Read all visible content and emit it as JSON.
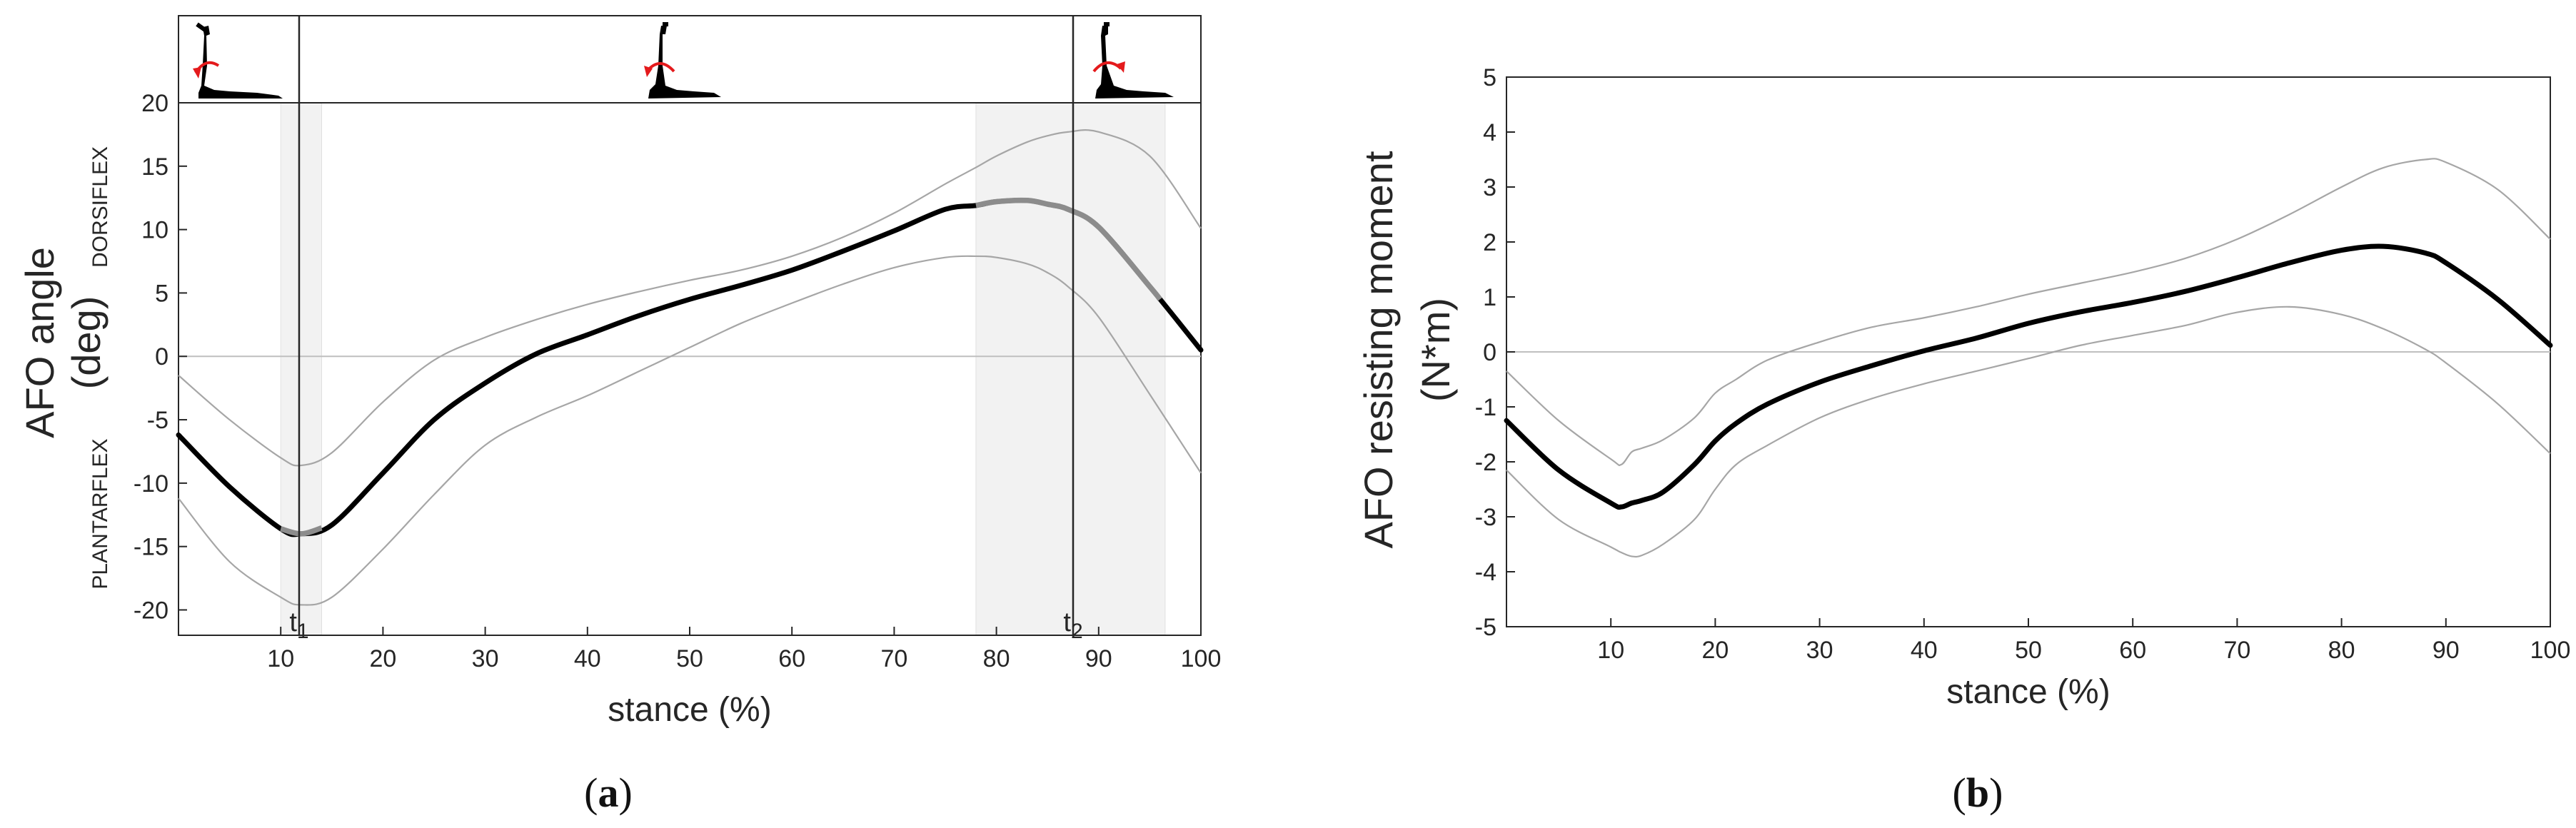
{
  "colors": {
    "mean": "#000000",
    "mean_highlight": "#8c8c8c",
    "sd": "#a6a6a6",
    "band": "#f2f2f2",
    "axis": "#262626",
    "zero": "#bfbfbf",
    "arrow": "#e41a1c"
  },
  "panels": {
    "a": {
      "caption_letter": "a",
      "caption_open": "(",
      "caption_close": ")"
    },
    "b": {
      "caption_letter": "b",
      "caption_open": "(",
      "caption_close": ")"
    }
  },
  "chart_data": [
    {
      "id": "a",
      "type": "line",
      "title": "",
      "xlabel": "stance (%)",
      "ylabel_line1": "AFO angle",
      "ylabel_line2": "(deg)",
      "side_label_top": "DORSIFLEX",
      "side_label_bottom": "PLANTARFLEX",
      "xlim": [
        0,
        100
      ],
      "ylim": [
        -22,
        20
      ],
      "xticks": [
        10,
        20,
        30,
        40,
        50,
        60,
        70,
        80,
        90,
        100
      ],
      "yticks": [
        -20,
        -15,
        -10,
        -5,
        0,
        5,
        10,
        15,
        20
      ],
      "x": [
        0,
        5,
        10,
        12,
        15,
        20,
        25,
        30,
        35,
        40,
        45,
        50,
        55,
        60,
        65,
        70,
        75,
        78,
        80,
        83,
        85,
        87,
        90,
        95,
        100
      ],
      "series": [
        {
          "name": "mean",
          "values": [
            -6.2,
            -10.3,
            -13.6,
            -14.0,
            -13.3,
            -9.2,
            -5.0,
            -2.1,
            0.2,
            1.7,
            3.2,
            4.5,
            5.6,
            6.8,
            8.3,
            9.9,
            11.6,
            11.9,
            12.2,
            12.3,
            12.0,
            11.6,
            10.2,
            5.5,
            0.5
          ]
        },
        {
          "name": "upper",
          "values": [
            -1.5,
            -5.0,
            -8.0,
            -8.6,
            -7.6,
            -3.6,
            -0.3,
            1.5,
            2.9,
            4.1,
            5.1,
            6.0,
            6.8,
            7.9,
            9.4,
            11.3,
            13.6,
            14.9,
            15.8,
            16.9,
            17.4,
            17.7,
            17.7,
            15.8,
            10.1
          ]
        },
        {
          "name": "lower",
          "values": [
            -11.2,
            -16.2,
            -19.0,
            -19.6,
            -19.0,
            -15.2,
            -10.9,
            -7.0,
            -4.8,
            -3.1,
            -1.2,
            0.7,
            2.6,
            4.2,
            5.7,
            7.0,
            7.8,
            7.9,
            7.8,
            7.3,
            6.6,
            5.5,
            3.1,
            -3.0,
            -9.2
          ]
        }
      ],
      "highlight_ranges": [
        [
          10,
          14
        ],
        [
          78,
          96
        ]
      ],
      "bands": [
        [
          10,
          14
        ],
        [
          78,
          96.5
        ]
      ],
      "vlines": [
        {
          "x": 11.8,
          "label": "t",
          "sub": "1"
        },
        {
          "x": 87.5,
          "label": "t",
          "sub": "2"
        }
      ],
      "phase_icons": [
        "ankle-plantarflexion-icon",
        "ankle-neutral-icon",
        "ankle-dorsiflexion-icon"
      ]
    },
    {
      "id": "b",
      "type": "line",
      "title": "",
      "xlabel": "stance (%)",
      "ylabel_line1": "AFO resisting moment",
      "ylabel_line2": "(N*m)",
      "xlim": [
        0,
        100
      ],
      "ylim": [
        -5,
        5
      ],
      "xticks": [
        10,
        20,
        30,
        40,
        50,
        60,
        70,
        80,
        90,
        100
      ],
      "yticks": [
        -5,
        -4,
        -3,
        -2,
        -1,
        0,
        1,
        2,
        3,
        4,
        5
      ],
      "x": [
        0,
        5,
        10,
        11,
        12,
        13,
        15,
        18,
        20,
        22,
        25,
        30,
        35,
        40,
        45,
        50,
        55,
        60,
        65,
        70,
        75,
        80,
        84,
        88,
        90,
        95,
        100
      ],
      "series": [
        {
          "name": "mean",
          "values": [
            -1.25,
            -2.15,
            -2.75,
            -2.82,
            -2.75,
            -2.7,
            -2.55,
            -2.05,
            -1.62,
            -1.3,
            -0.95,
            -0.55,
            -0.25,
            0.02,
            0.25,
            0.52,
            0.73,
            0.9,
            1.1,
            1.35,
            1.62,
            1.85,
            1.92,
            1.8,
            1.62,
            0.95,
            0.12
          ]
        },
        {
          "name": "upper",
          "values": [
            -0.35,
            -1.25,
            -1.95,
            -2.05,
            -1.82,
            -1.75,
            -1.6,
            -1.2,
            -0.75,
            -0.5,
            -0.15,
            0.18,
            0.45,
            0.62,
            0.82,
            1.05,
            1.25,
            1.45,
            1.7,
            2.05,
            2.5,
            3.0,
            3.35,
            3.5,
            3.45,
            2.95,
            2.05
          ]
        },
        {
          "name": "lower",
          "values": [
            -2.15,
            -3.05,
            -3.55,
            -3.65,
            -3.72,
            -3.7,
            -3.5,
            -3.05,
            -2.5,
            -2.05,
            -1.7,
            -1.2,
            -0.85,
            -0.58,
            -0.35,
            -0.12,
            0.12,
            0.3,
            0.48,
            0.72,
            0.82,
            0.68,
            0.42,
            0.05,
            -0.2,
            -0.95,
            -1.85
          ]
        }
      ]
    }
  ]
}
